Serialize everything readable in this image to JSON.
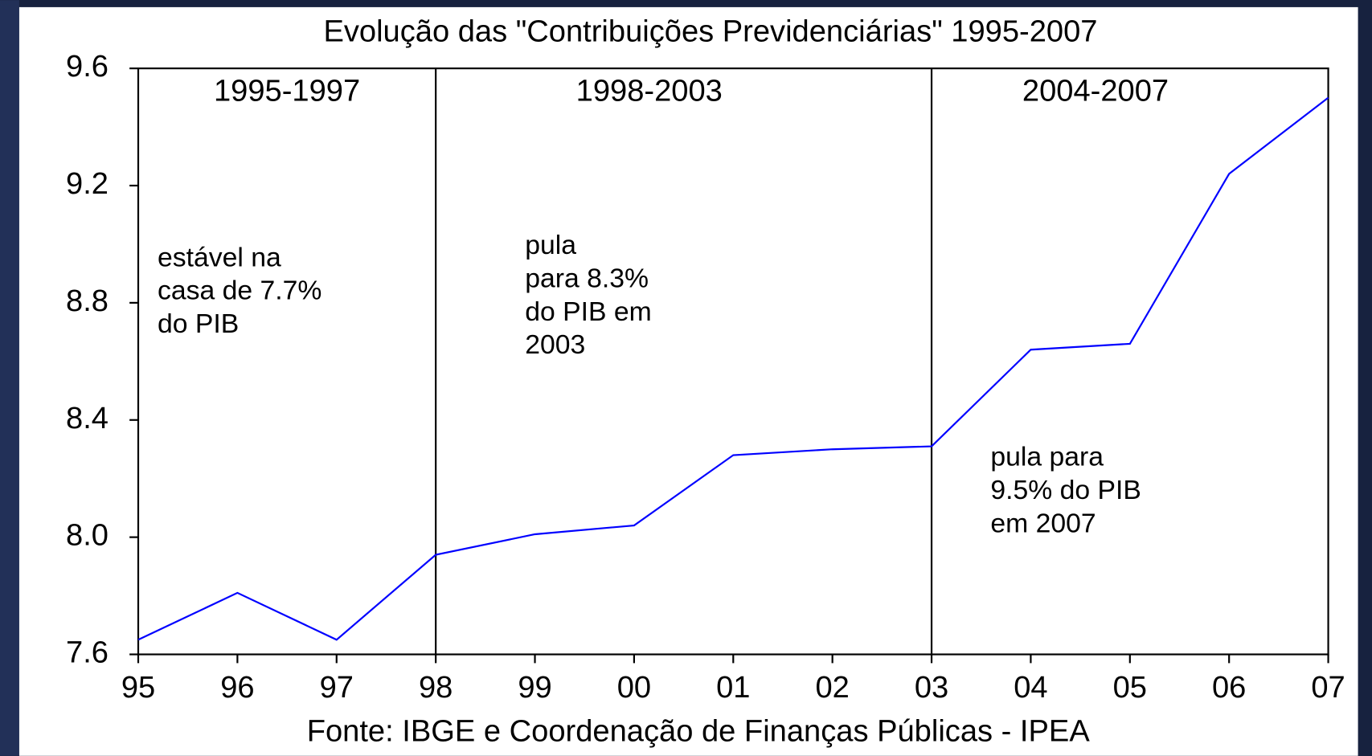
{
  "chart_data": {
    "type": "line",
    "title": "Evolução das \"Contribuições Previdenciárias\" 1995-2007",
    "source": "Fonte: IBGE e Coordenação de Finanças Públicas - IPEA",
    "categories": [
      "95",
      "96",
      "97",
      "98",
      "99",
      "00",
      "01",
      "02",
      "03",
      "04",
      "05",
      "06",
      "07"
    ],
    "series": [
      {
        "name": "Contribuições Previdenciárias",
        "color": "#0000ff",
        "values": [
          7.65,
          7.81,
          7.65,
          7.94,
          8.01,
          8.04,
          8.28,
          8.3,
          8.31,
          8.64,
          8.66,
          9.24,
          9.5
        ]
      }
    ],
    "ylim": [
      7.6,
      9.6
    ],
    "yticks": [
      7.6,
      {
        "value": 8,
        "label": "8.0"
      },
      8.4,
      8.8,
      9.2,
      9.6
    ],
    "periods": [
      "1995-1997",
      "1998-2003",
      "2004-2007"
    ],
    "annotations": [
      [
        "estável na",
        "casa de 7.7%",
        "do PIB"
      ],
      [
        "pula",
        "para 8.3%",
        "do PIB em",
        "2003"
      ],
      [
        "pula para",
        "9.5% do PIB",
        "em 2007"
      ]
    ]
  }
}
